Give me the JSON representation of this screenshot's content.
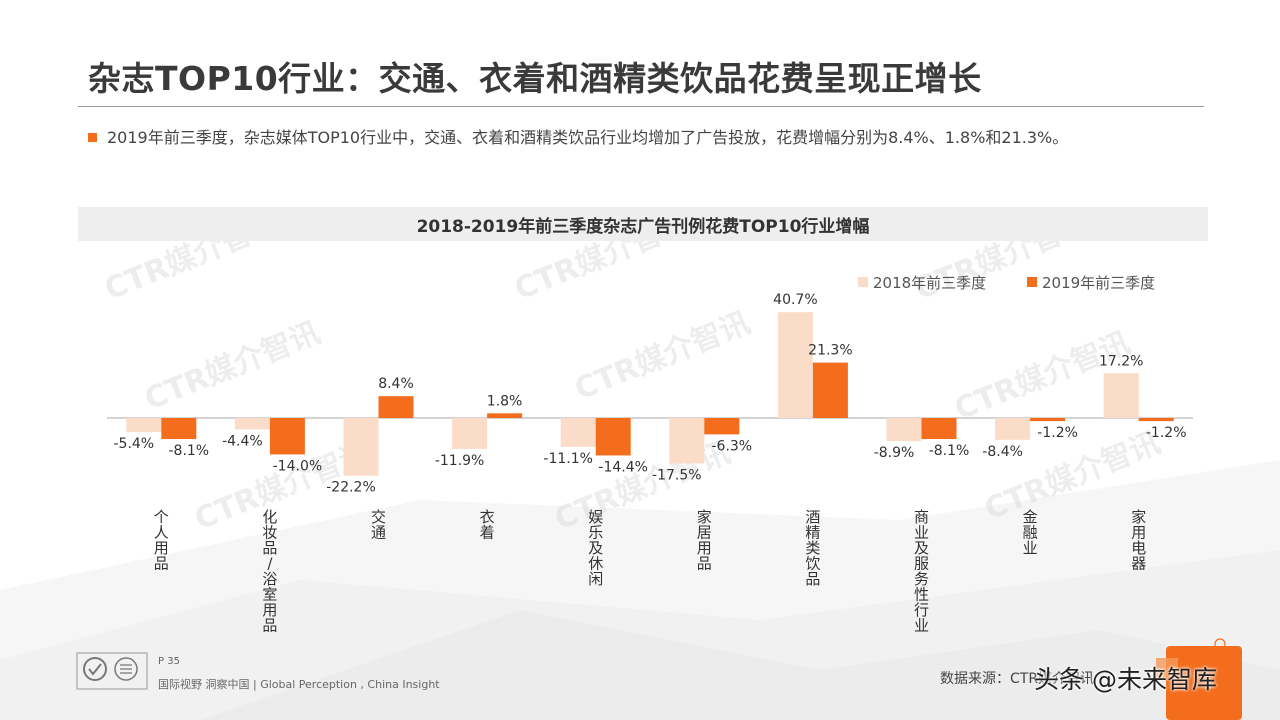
{
  "title": "杂志TOP10行业：交通、衣着和酒精类饮品花费呈现正增长",
  "bullet": "2019年前三季度，杂志媒体TOP10行业中，交通、衣着和酒精类饮品行业均增加了广告投放，花费增幅分别为8.4%、1.8%和21.3%。",
  "chart_title": "2018-2019年前三季度杂志广告刊例花费TOP10行业增幅",
  "watermark": "CTR媒介智讯",
  "footer": {
    "page": "P 35",
    "slogan": "国际视野  洞察中国 | Global Perception , China Insight",
    "source": "数据来源：CTR媒介智讯"
  },
  "overlay_mark": "头条 @未来智库",
  "colors": {
    "series_2018": "#fbdcc8",
    "series_2019": "#f36d1d",
    "accent": "#f36d1d",
    "axis": "#aaaaaa"
  },
  "chart_data": {
    "type": "bar",
    "categories": [
      "个人用品",
      "化妆品/浴室用品",
      "交通",
      "衣着",
      "娱乐及休闲",
      "家居用品",
      "酒精类饮品",
      "商业及服务性行业",
      "金融业",
      "家用电器"
    ],
    "series": [
      {
        "name": "2018年前三季度",
        "values": [
          -5.4,
          -4.4,
          -22.2,
          -11.9,
          -11.1,
          -17.5,
          40.7,
          -8.9,
          -8.4,
          17.2
        ]
      },
      {
        "name": "2019年前三季度",
        "values": [
          -8.1,
          -14.0,
          8.4,
          1.8,
          -14.4,
          -6.3,
          21.3,
          -8.1,
          -1.2,
          -1.2
        ]
      }
    ],
    "value_format": "percent_1dp",
    "legend_position": "top-right",
    "ylim": [
      -25,
      45
    ],
    "grid": false
  }
}
